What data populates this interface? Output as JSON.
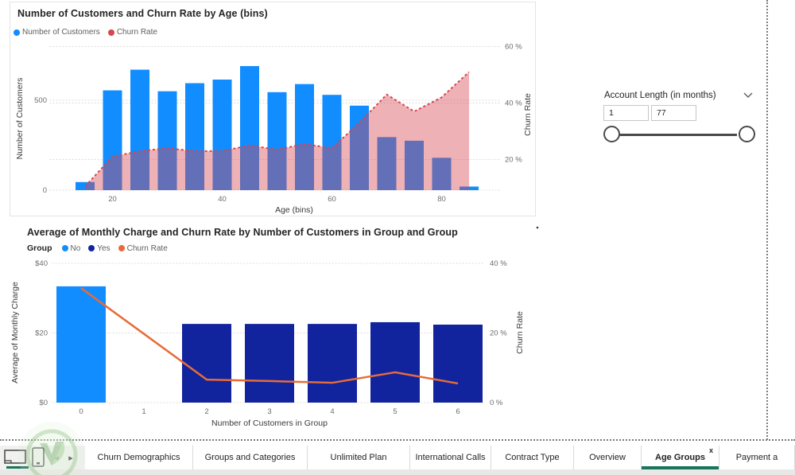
{
  "chart_data": [
    {
      "type": "combo-bar-area-line",
      "title": "Number of Customers and Churn Rate by Age (bins)",
      "xlabel": "Age (bins)",
      "ylabel_left": "Number of Customers",
      "ylabel_right": "Churn Rate",
      "legend": [
        {
          "label": "Number of Customers",
          "color": "#118DFF"
        },
        {
          "label": "Churn Rate",
          "color": "#D64550"
        }
      ],
      "bin_centers": [
        15,
        20,
        25,
        30,
        35,
        40,
        45,
        50,
        55,
        60,
        65,
        70,
        75,
        80,
        85
      ],
      "bars_customers": [
        45,
        555,
        670,
        550,
        595,
        615,
        690,
        545,
        590,
        530,
        470,
        295,
        275,
        180,
        20
      ],
      "churn_rate_pct": [
        10.5,
        21,
        23,
        24,
        23,
        23,
        25,
        23.5,
        25.5,
        24,
        33,
        43,
        37,
        42,
        51
      ],
      "x_ticks": [
        "20",
        "40",
        "60",
        "80"
      ],
      "x_tick_ages": [
        20,
        40,
        60,
        80
      ],
      "left_ticks": [
        "0",
        "500"
      ],
      "left_tick_values": [
        0,
        500
      ],
      "right_ticks": [
        "20 %",
        "40 %",
        "60 %"
      ],
      "right_tick_values": [
        20,
        40,
        60
      ],
      "bar_color": "#118DFF",
      "line_color": "#D64550",
      "area_fill": "rgba(214,69,80,0.42)",
      "grid": true,
      "legend_position": "top-left"
    },
    {
      "type": "combo-bar-line",
      "title": "Average of Monthly Charge and Churn Rate by Number of Customers in Group and Group",
      "xlabel": "Number of Customers in Group",
      "ylabel_left": "Average of Monthly Charge",
      "ylabel_right": "Churn Rate",
      "legend_title": "Group",
      "categories": [
        "0",
        "1",
        "2",
        "3",
        "4",
        "5",
        "6"
      ],
      "series": [
        {
          "name": "No",
          "color": "#118DFF",
          "values": [
            33.4,
            null,
            null,
            null,
            null,
            null,
            null
          ]
        },
        {
          "name": "Yes",
          "color": "#12239E",
          "values": [
            null,
            null,
            22.6,
            22.6,
            22.6,
            23.1,
            22.4
          ]
        }
      ],
      "line": {
        "name": "Churn Rate",
        "color": "#E66C37",
        "values_pct": [
          32.9,
          null,
          6.6,
          6.2,
          5.7,
          8.7,
          5.5
        ]
      },
      "left_ticks": [
        "$0",
        "$20",
        "$40"
      ],
      "left_tick_values": [
        0,
        20,
        40
      ],
      "right_ticks": [
        "0 %",
        "20 %",
        "40 %"
      ],
      "right_tick_values": [
        0,
        20,
        40
      ],
      "left_max": 40,
      "right_max_pct": 40,
      "grid": true,
      "legend_position": "top-left"
    }
  ],
  "visual_header": {
    "icons": [
      {
        "name": "filter-icon"
      },
      {
        "name": "focus-mode-icon"
      },
      {
        "name": "more-options-icon"
      }
    ]
  },
  "slicer": {
    "title": "Account Length (in months)",
    "range_start": "1",
    "range_end": "77",
    "chevron_icon": "chevron-down-icon"
  },
  "tabbar": {
    "view_icons": [
      {
        "name": "desktop-view-icon"
      },
      {
        "name": "mobile-view-icon"
      }
    ],
    "prev_arrow": "◂",
    "next_arrow": "▸",
    "tabs": [
      {
        "label": "Churn Demographics",
        "active": false
      },
      {
        "label": "Groups and Categories",
        "active": false
      },
      {
        "label": "Unlimited Plan",
        "active": false
      },
      {
        "label": "International Calls",
        "active": false
      },
      {
        "label": "Contract Type",
        "active": false
      },
      {
        "label": "Overview",
        "active": false
      },
      {
        "label": "Age Groups",
        "active": true,
        "close_label": "x"
      },
      {
        "label": "Payment a",
        "active": false
      }
    ],
    "active_underline_color": "#16755B"
  },
  "colors": {
    "bar_blue": "#118DFF",
    "bar_navy": "#12239E",
    "line_orange": "#E66C37",
    "line_red": "#D64550",
    "axis_text": "#6E6D6B",
    "title_text": "#252423"
  }
}
